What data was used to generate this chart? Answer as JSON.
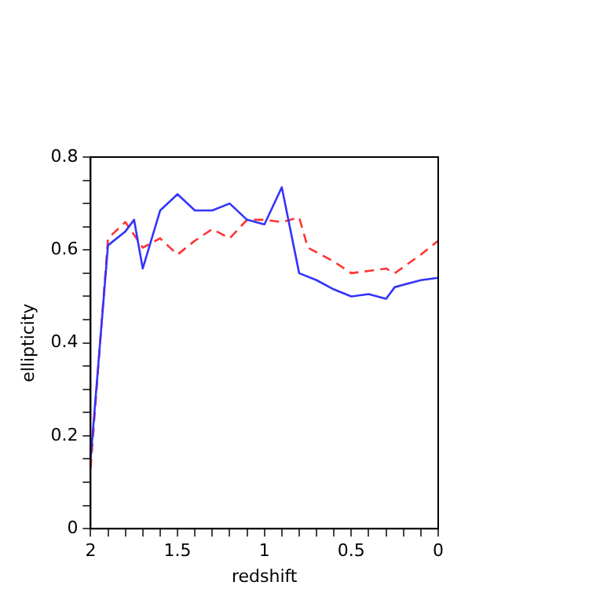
{
  "chart_data": {
    "type": "line",
    "xlabel": "redshift",
    "ylabel": "ellipticity",
    "xlim": [
      2,
      0
    ],
    "ylim": [
      0,
      0.8
    ],
    "xticks": [
      2,
      {
        "value": 1.9,
        "label": null
      },
      {
        "value": 1.8,
        "label": null
      },
      {
        "value": 1.7,
        "label": null
      },
      {
        "value": 1.6,
        "label": null
      },
      1.5,
      {
        "value": 1.4,
        "label": null
      },
      {
        "value": 1.3,
        "label": null
      },
      {
        "value": 1.2,
        "label": null
      },
      {
        "value": 1.1,
        "label": null
      },
      1,
      {
        "value": 0.9,
        "label": null
      },
      {
        "value": 0.8,
        "label": null
      },
      {
        "value": 0.7,
        "label": null
      },
      {
        "value": 0.6,
        "label": null
      },
      0.5,
      {
        "value": 0.4,
        "label": null
      },
      {
        "value": 0.3,
        "label": null
      },
      {
        "value": 0.2,
        "label": null
      },
      {
        "value": 0.1,
        "label": null
      },
      0
    ],
    "yticks": [
      0,
      {
        "value": 0.05,
        "label": null
      },
      {
        "value": 0.1,
        "label": null
      },
      {
        "value": 0.15,
        "label": null
      },
      0.2,
      {
        "value": 0.25,
        "label": null
      },
      {
        "value": 0.3,
        "label": null
      },
      {
        "value": 0.35,
        "label": null
      },
      0.4,
      {
        "value": 0.45,
        "label": null
      },
      {
        "value": 0.5,
        "label": null
      },
      {
        "value": 0.55,
        "label": null
      },
      0.6,
      {
        "value": 0.65,
        "label": null
      },
      {
        "value": 0.7,
        "label": null
      },
      {
        "value": 0.75,
        "label": null
      },
      0.8
    ],
    "grid": false,
    "legend": false,
    "marker": "none",
    "series": [
      {
        "color": "#3333ff",
        "line_style": "solid",
        "x": [
          2,
          1.9,
          1.8,
          1.75,
          1.7,
          1.6,
          1.5,
          1.4,
          1.3,
          1.2,
          1.1,
          1,
          0.9,
          0.8,
          0.7,
          0.6,
          0.5,
          0.4,
          0.3,
          0.25,
          0.1,
          0
        ],
        "values": [
          0.15,
          0.61,
          0.64,
          0.665,
          0.56,
          0.685,
          0.72,
          0.685,
          0.685,
          0.7,
          0.665,
          0.655,
          0.735,
          0.55,
          0.535,
          0.515,
          0.5,
          0.505,
          0.495,
          0.52,
          0.535,
          0.54
        ]
      },
      {
        "color": "#ff3333",
        "line_style": "dashed",
        "x": [
          2,
          1.9,
          1.8,
          1.7,
          1.6,
          1.5,
          1.4,
          1.3,
          1.2,
          1.1,
          1,
          0.9,
          0.8,
          0.75,
          0.6,
          0.5,
          0.4,
          0.3,
          0.25,
          0.1,
          0
        ],
        "values": [
          0.13,
          0.625,
          0.66,
          0.605,
          0.625,
          0.59,
          0.62,
          0.645,
          0.625,
          0.665,
          0.665,
          0.66,
          0.67,
          0.605,
          0.575,
          0.55,
          0.555,
          0.56,
          0.55,
          0.59,
          0.62
        ]
      }
    ]
  }
}
